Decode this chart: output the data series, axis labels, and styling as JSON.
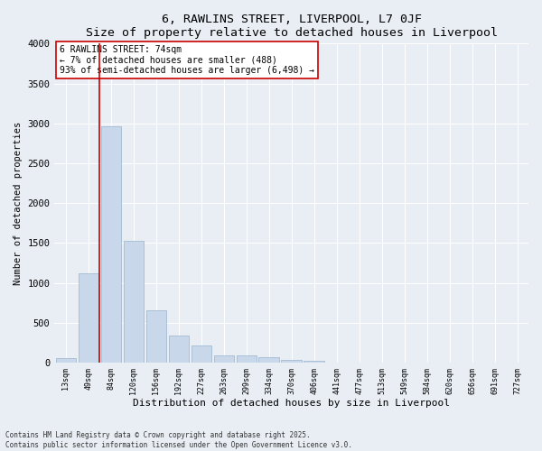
{
  "title1": "6, RAWLINS STREET, LIVERPOOL, L7 0JF",
  "title2": "Size of property relative to detached houses in Liverpool",
  "xlabel": "Distribution of detached houses by size in Liverpool",
  "ylabel": "Number of detached properties",
  "categories": [
    "13sqm",
    "49sqm",
    "84sqm",
    "120sqm",
    "156sqm",
    "192sqm",
    "227sqm",
    "263sqm",
    "299sqm",
    "334sqm",
    "370sqm",
    "406sqm",
    "441sqm",
    "477sqm",
    "513sqm",
    "549sqm",
    "584sqm",
    "620sqm",
    "656sqm",
    "691sqm",
    "727sqm"
  ],
  "values": [
    55,
    1120,
    2960,
    1530,
    660,
    340,
    215,
    90,
    90,
    65,
    30,
    20,
    5,
    0,
    0,
    0,
    0,
    0,
    0,
    0,
    0
  ],
  "bar_color": "#c8d8ea",
  "bar_edge_color": "#9ab4cc",
  "marker_line_color": "#cc0000",
  "annotation_text": "6 RAWLINS STREET: 74sqm\n← 7% of detached houses are smaller (488)\n93% of semi-detached houses are larger (6,498) →",
  "annotation_box_color": "#ffffff",
  "annotation_box_edge": "#cc0000",
  "ylim": [
    0,
    4000
  ],
  "yticks": [
    0,
    500,
    1000,
    1500,
    2000,
    2500,
    3000,
    3500,
    4000
  ],
  "footer1": "Contains HM Land Registry data © Crown copyright and database right 2025.",
  "footer2": "Contains public sector information licensed under the Open Government Licence v3.0.",
  "bg_color": "#e8eef4",
  "plot_bg_color": "#e8eef4",
  "grid_color": "#ffffff"
}
